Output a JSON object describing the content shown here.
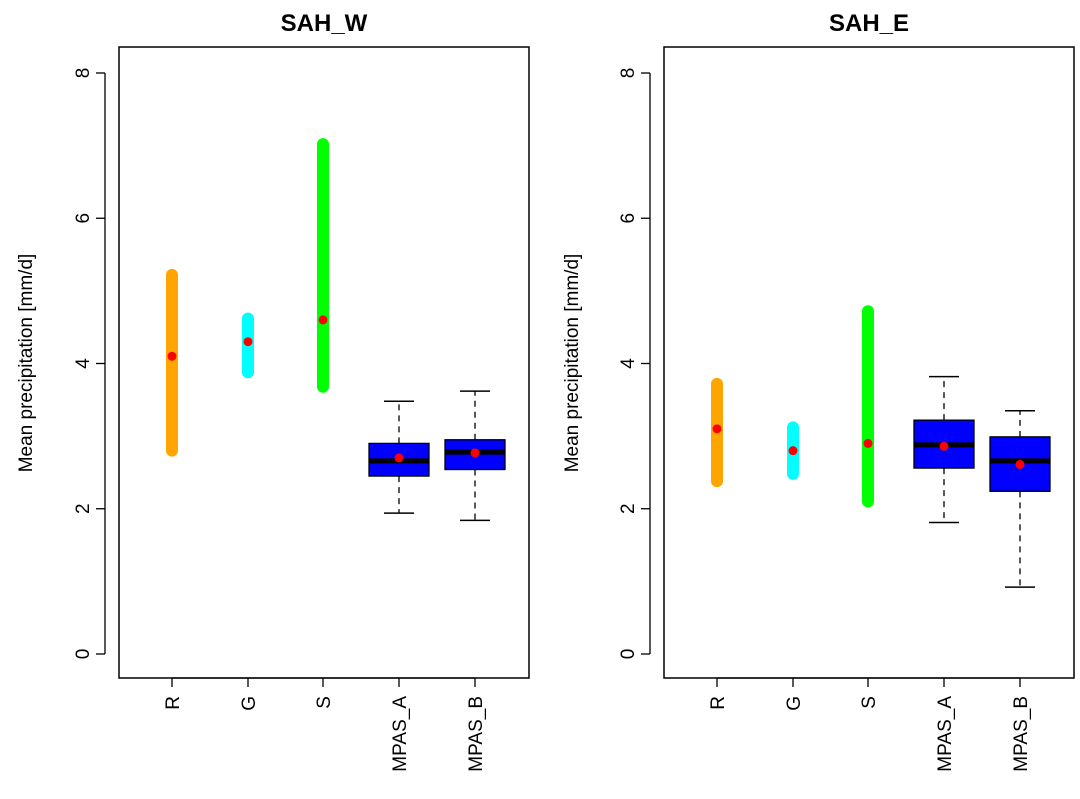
{
  "chart_data": [
    {
      "type": "boxplot",
      "title": "SAH_W",
      "ylabel": "Mean precipitation [mm/d]",
      "ylim": [
        0,
        8
      ],
      "yticks": [
        0,
        2,
        4,
        6,
        8
      ],
      "categories": [
        "R",
        "G",
        "S",
        "MPAS_A",
        "MPAS_B"
      ],
      "grid": false,
      "ranges": [
        {
          "category": "R",
          "min": 2.8,
          "max": 5.22,
          "mean": 4.1,
          "color": "#FFA500"
        },
        {
          "category": "G",
          "min": 3.88,
          "max": 4.62,
          "mean": 4.3,
          "color": "#00FFFF"
        },
        {
          "category": "S",
          "min": 3.68,
          "max": 7.02,
          "mean": 4.6,
          "color": "#00FF00"
        }
      ],
      "boxes": [
        {
          "category": "MPAS_A",
          "whisker_low": 1.94,
          "q1": 2.45,
          "median": 2.66,
          "q3": 2.9,
          "whisker_high": 3.48,
          "mean": 2.7,
          "color": "#0000FF"
        },
        {
          "category": "MPAS_B",
          "whisker_low": 1.84,
          "q1": 2.54,
          "median": 2.78,
          "q3": 2.95,
          "whisker_high": 3.62,
          "mean": 2.77,
          "color": "#0000FF"
        }
      ],
      "mean_marker_color": "#FF0000"
    },
    {
      "type": "boxplot",
      "title": "SAH_E",
      "ylabel": "Mean precipitation [mm/d]",
      "ylim": [
        0,
        8
      ],
      "yticks": [
        0,
        2,
        4,
        6,
        8
      ],
      "categories": [
        "R",
        "G",
        "S",
        "MPAS_A",
        "MPAS_B"
      ],
      "grid": false,
      "ranges": [
        {
          "category": "R",
          "min": 2.38,
          "max": 3.72,
          "mean": 3.1,
          "color": "#FFA500"
        },
        {
          "category": "G",
          "min": 2.48,
          "max": 3.12,
          "mean": 2.8,
          "color": "#00FFFF"
        },
        {
          "category": "S",
          "min": 2.1,
          "max": 4.72,
          "mean": 2.9,
          "color": "#00FF00"
        }
      ],
      "boxes": [
        {
          "category": "MPAS_A",
          "whisker_low": 1.81,
          "q1": 2.56,
          "median": 2.88,
          "q3": 3.22,
          "whisker_high": 3.82,
          "mean": 2.86,
          "color": "#0000FF"
        },
        {
          "category": "MPAS_B",
          "whisker_low": 0.92,
          "q1": 2.24,
          "median": 2.66,
          "q3": 2.99,
          "whisker_high": 3.35,
          "mean": 2.61,
          "color": "#0000FF"
        }
      ],
      "mean_marker_color": "#FF0000"
    }
  ]
}
